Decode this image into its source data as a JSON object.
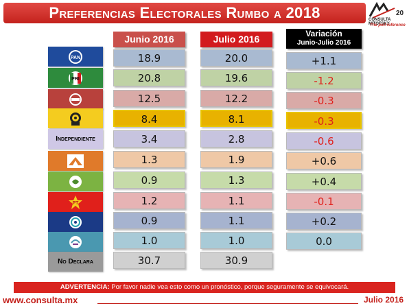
{
  "title": "Preferencias Electorales Rumbo a 2018",
  "logo": {
    "brand": "CONSULTA MITOFSKY",
    "tagline": "The poll reference",
    "anniversary": "20"
  },
  "headers": {
    "june": "Junio 2016",
    "july": "Julio 2016",
    "variation": "Variación",
    "variation_sub": "Junio-Julio 2016"
  },
  "colors": {
    "title_bar": "#d12d27",
    "june_header": "#c9504b",
    "july_header": "#d21b1e",
    "variation_header": "#000000",
    "positive_text": "#111111",
    "negative_text": "#e0201b",
    "highlight": "#e8b200"
  },
  "rows": [
    {
      "party": "PAN",
      "icon": "pan-logo-icon",
      "party_bg": "#1f4b9c",
      "cell_bg": "#a9bad1",
      "cell_bg_var": "#a9bad1",
      "june": "18.9",
      "july": "20.0",
      "variation": "+1.1",
      "sign": "pos"
    },
    {
      "party": "PRI",
      "icon": "pri-logo-icon",
      "party_bg": "#2e8b3d",
      "cell_bg": "#bfd2a5",
      "cell_bg_var": "#bfd2a5",
      "june": "20.8",
      "july": "19.6",
      "variation": "-1.2",
      "sign": "neg"
    },
    {
      "party": "Morena",
      "icon": "morena-logo-icon",
      "party_bg": "#b8413c",
      "cell_bg": "#d9aaa7",
      "cell_bg_var": "#d9aaa7",
      "june": "12.5",
      "july": "12.2",
      "variation": "-0.3",
      "sign": "neg"
    },
    {
      "party": "PRD",
      "icon": "prd-logo-icon",
      "party_bg": "#f4cc1f",
      "cell_bg": "#e8b200",
      "cell_bg_var": "#e8b200",
      "june": "8.4",
      "july": "8.1",
      "variation": "-0.3",
      "sign": "neg",
      "highlight": true
    },
    {
      "party": "Independiente",
      "icon": "",
      "party_bg": "#cfc8e6",
      "cell_bg": "#c7c4df",
      "cell_bg_var": "#c7c4df",
      "june": "3.4",
      "july": "2.8",
      "variation": "-0.6",
      "sign": "neg"
    },
    {
      "party": "Movimiento Ciudadano",
      "icon": "mc-logo-icon",
      "party_bg": "#e07a2a",
      "cell_bg": "#efc8a6",
      "cell_bg_var": "#efc8a6",
      "june": "1.3",
      "july": "1.9",
      "variation": "+0.6",
      "sign": "pos"
    },
    {
      "party": "PVEM",
      "icon": "verde-logo-icon",
      "party_bg": "#7cb342",
      "cell_bg": "#c6dba9",
      "cell_bg_var": "#c6dba9",
      "june": "0.9",
      "july": "1.3",
      "variation": "+0.4",
      "sign": "pos"
    },
    {
      "party": "PT",
      "icon": "pt-logo-icon",
      "party_bg": "#e0201b",
      "cell_bg": "#e6b3b4",
      "cell_bg_var": "#e6b3b4",
      "june": "1.2",
      "july": "1.1",
      "variation": "-0.1",
      "sign": "neg"
    },
    {
      "party": "Nueva Alianza",
      "icon": "nueva-alianza-logo-icon",
      "party_bg": "#1b3a86",
      "cell_bg": "#a6b3cf",
      "cell_bg_var": "#a6b3cf",
      "june": "0.9",
      "july": "1.1",
      "variation": "+0.2",
      "sign": "pos"
    },
    {
      "party": "Encuentro Social",
      "icon": "encuentro-social-logo-icon",
      "party_bg": "#4a98b0",
      "cell_bg": "#a8cad7",
      "cell_bg_var": "#a8cad7",
      "june": "1.0",
      "july": "1.0",
      "variation": "0.0",
      "sign": "pos"
    },
    {
      "party": "No Declara",
      "icon": "",
      "party_bg": "#9a9a9a",
      "cell_bg": "#d0d0d0",
      "june": "30.7",
      "july": "30.9"
    }
  ],
  "party_labels": {
    "independiente": "Independiente",
    "no_declara": "No Declara"
  },
  "warning": {
    "label": "ADVERTENCIA:",
    "text": " Por favor nadie vea esto como un pronóstico, porque seguramente se equivocará."
  },
  "footer": {
    "url": "www.consulta.mx",
    "date": "Julio 2016"
  },
  "chart_data": {
    "type": "table",
    "title": "Preferencias Electorales Rumbo a 2018",
    "columns": [
      "Junio 2016",
      "Julio 2016",
      "Variación Junio-Julio 2016"
    ],
    "categories": [
      "PAN",
      "PRI",
      "Morena",
      "PRD",
      "Independiente",
      "Movimiento Ciudadano",
      "PVEM",
      "PT",
      "Nueva Alianza",
      "Encuentro Social",
      "No Declara"
    ],
    "series": [
      {
        "name": "Junio 2016",
        "values": [
          18.9,
          20.8,
          12.5,
          8.4,
          3.4,
          1.3,
          0.9,
          1.2,
          0.9,
          1.0,
          30.7
        ]
      },
      {
        "name": "Julio 2016",
        "values": [
          20.0,
          19.6,
          12.2,
          8.1,
          2.8,
          1.9,
          1.3,
          1.1,
          1.1,
          1.0,
          30.9
        ]
      },
      {
        "name": "Variación Junio-Julio 2016",
        "values": [
          1.1,
          -1.2,
          -0.3,
          -0.3,
          -0.6,
          0.6,
          0.4,
          -0.1,
          0.2,
          0.0,
          null
        ]
      }
    ]
  }
}
